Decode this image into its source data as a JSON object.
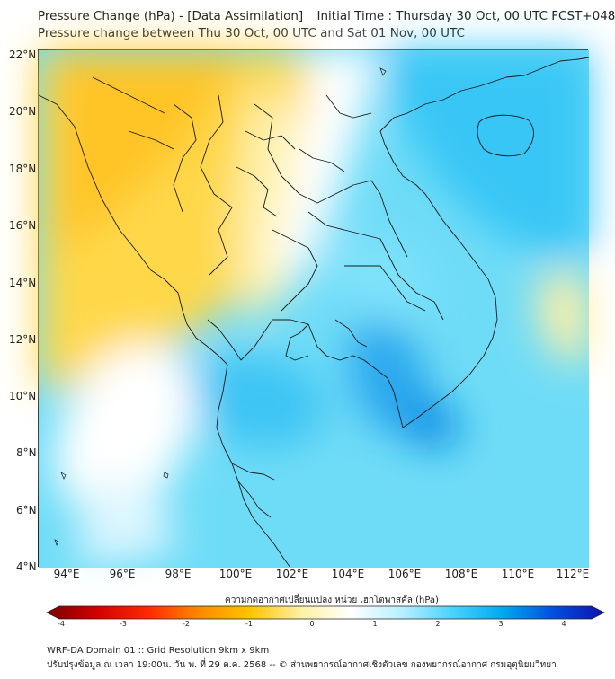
{
  "title_line1": "Pressure Change (hPa) - [Data Assimilation] _ Initial Time : Thursday 30 Oct, 00 UTC FCST+048",
  "title_line2": "Pressure change between Thu 30 Oct, 00 UTC and Sat 01 Nov, 00 UTC",
  "lat_labels": [
    "22°N",
    "20°N",
    "18°N",
    "16°N",
    "14°N",
    "12°N",
    "10°N",
    "8°N",
    "6°N",
    "4°N"
  ],
  "lon_labels": [
    "94°E",
    "96°E",
    "98°E",
    "100°E",
    "102°E",
    "104°E",
    "106°E",
    "108°E",
    "110°E",
    "112°E"
  ],
  "colorbar": {
    "title": "ความกดอากาศเปลี่ยนแปลง หน่วย เฮกโตพาสคัล (hPa)",
    "ticks": [
      "-4",
      "-3",
      "-2",
      "-1",
      "0",
      "1",
      "2",
      "3",
      "4"
    ],
    "range": [
      -4,
      4.5
    ],
    "colors": [
      "#7a0000",
      "#d40000",
      "#ff2a00",
      "#ff8800",
      "#ffc400",
      "#fff0a0",
      "#ffffff",
      "#b8f0ff",
      "#48d4ff",
      "#00a8f0",
      "#0050e0",
      "#1010b0"
    ]
  },
  "footer_line1": "WRF-DA Domain 01 :: Grid Resolution 9km x 9km",
  "footer_line2": "ปรับปรุงข้อมูล ณ เวลา 19:00น. วัน พ. ที่ 29 ต.ค. 2568 -- © ส่วนพยากรณ์อากาศเชิงตัวเลข กองพยากรณ์อากาศ กรมอุตุนิยมวิทยา",
  "map_colors": {
    "yellow": "#ffd84a",
    "light_yellow": "#fff0a8",
    "white": "#ffffff",
    "cyan": "#5ad8f8",
    "light_cyan": "#a8ecfc",
    "blue": "#30b8f4"
  }
}
